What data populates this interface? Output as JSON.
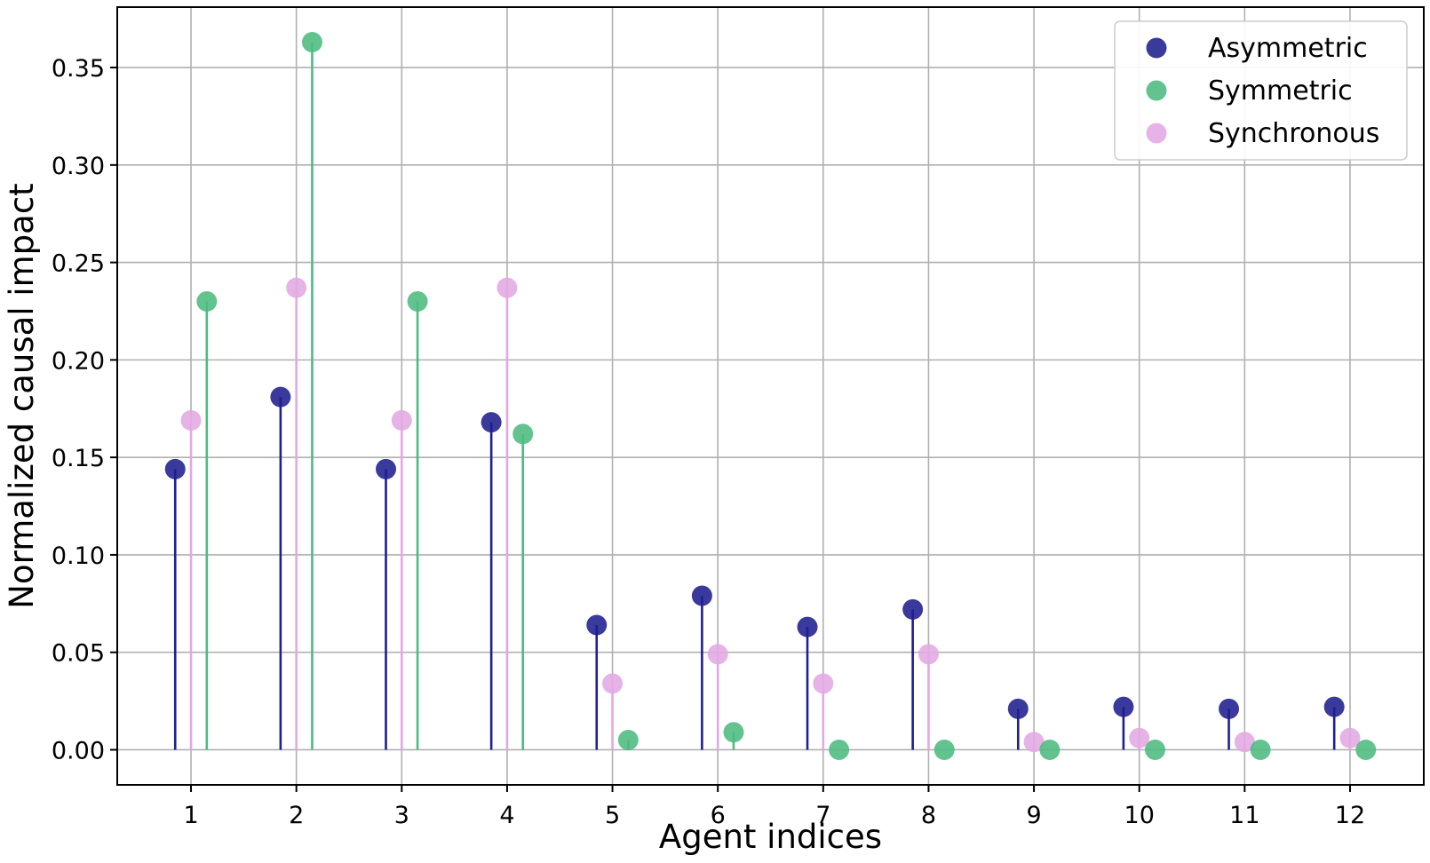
{
  "chart_data": {
    "type": "stem",
    "xlabel": "Agent indices",
    "ylabel": "Normalized causal impact",
    "xlim": [
      0.3,
      12.7
    ],
    "ylim": [
      -0.018,
      0.381
    ],
    "x_ticks": [
      1,
      2,
      3,
      4,
      5,
      6,
      7,
      8,
      9,
      10,
      11,
      12
    ],
    "y_ticks": [
      "0.00",
      "0.05",
      "0.10",
      "0.15",
      "0.20",
      "0.25",
      "0.30",
      "0.35"
    ],
    "grid": true,
    "legend_position": "top-right",
    "series": [
      {
        "name": "Asymmetric",
        "color": "#1f1f8f",
        "offset": -0.15,
        "values": [
          0.144,
          0.181,
          0.144,
          0.168,
          0.064,
          0.079,
          0.063,
          0.072,
          0.021,
          0.022,
          0.021,
          0.022
        ]
      },
      {
        "name": "Synchronous",
        "color": "#e3a8e3",
        "offset": 0.0,
        "values": [
          0.169,
          0.237,
          0.169,
          0.237,
          0.034,
          0.049,
          0.034,
          0.049,
          0.004,
          0.006,
          0.004,
          0.006
        ]
      },
      {
        "name": "Symmetric",
        "color": "#4dbb80",
        "offset": 0.15,
        "values": [
          0.23,
          0.363,
          0.23,
          0.162,
          0.005,
          0.009,
          0.0,
          0.0,
          0.0,
          0.0,
          0.0,
          0.0
        ]
      }
    ],
    "legend_order": [
      "Asymmetric",
      "Symmetric",
      "Synchronous"
    ]
  }
}
